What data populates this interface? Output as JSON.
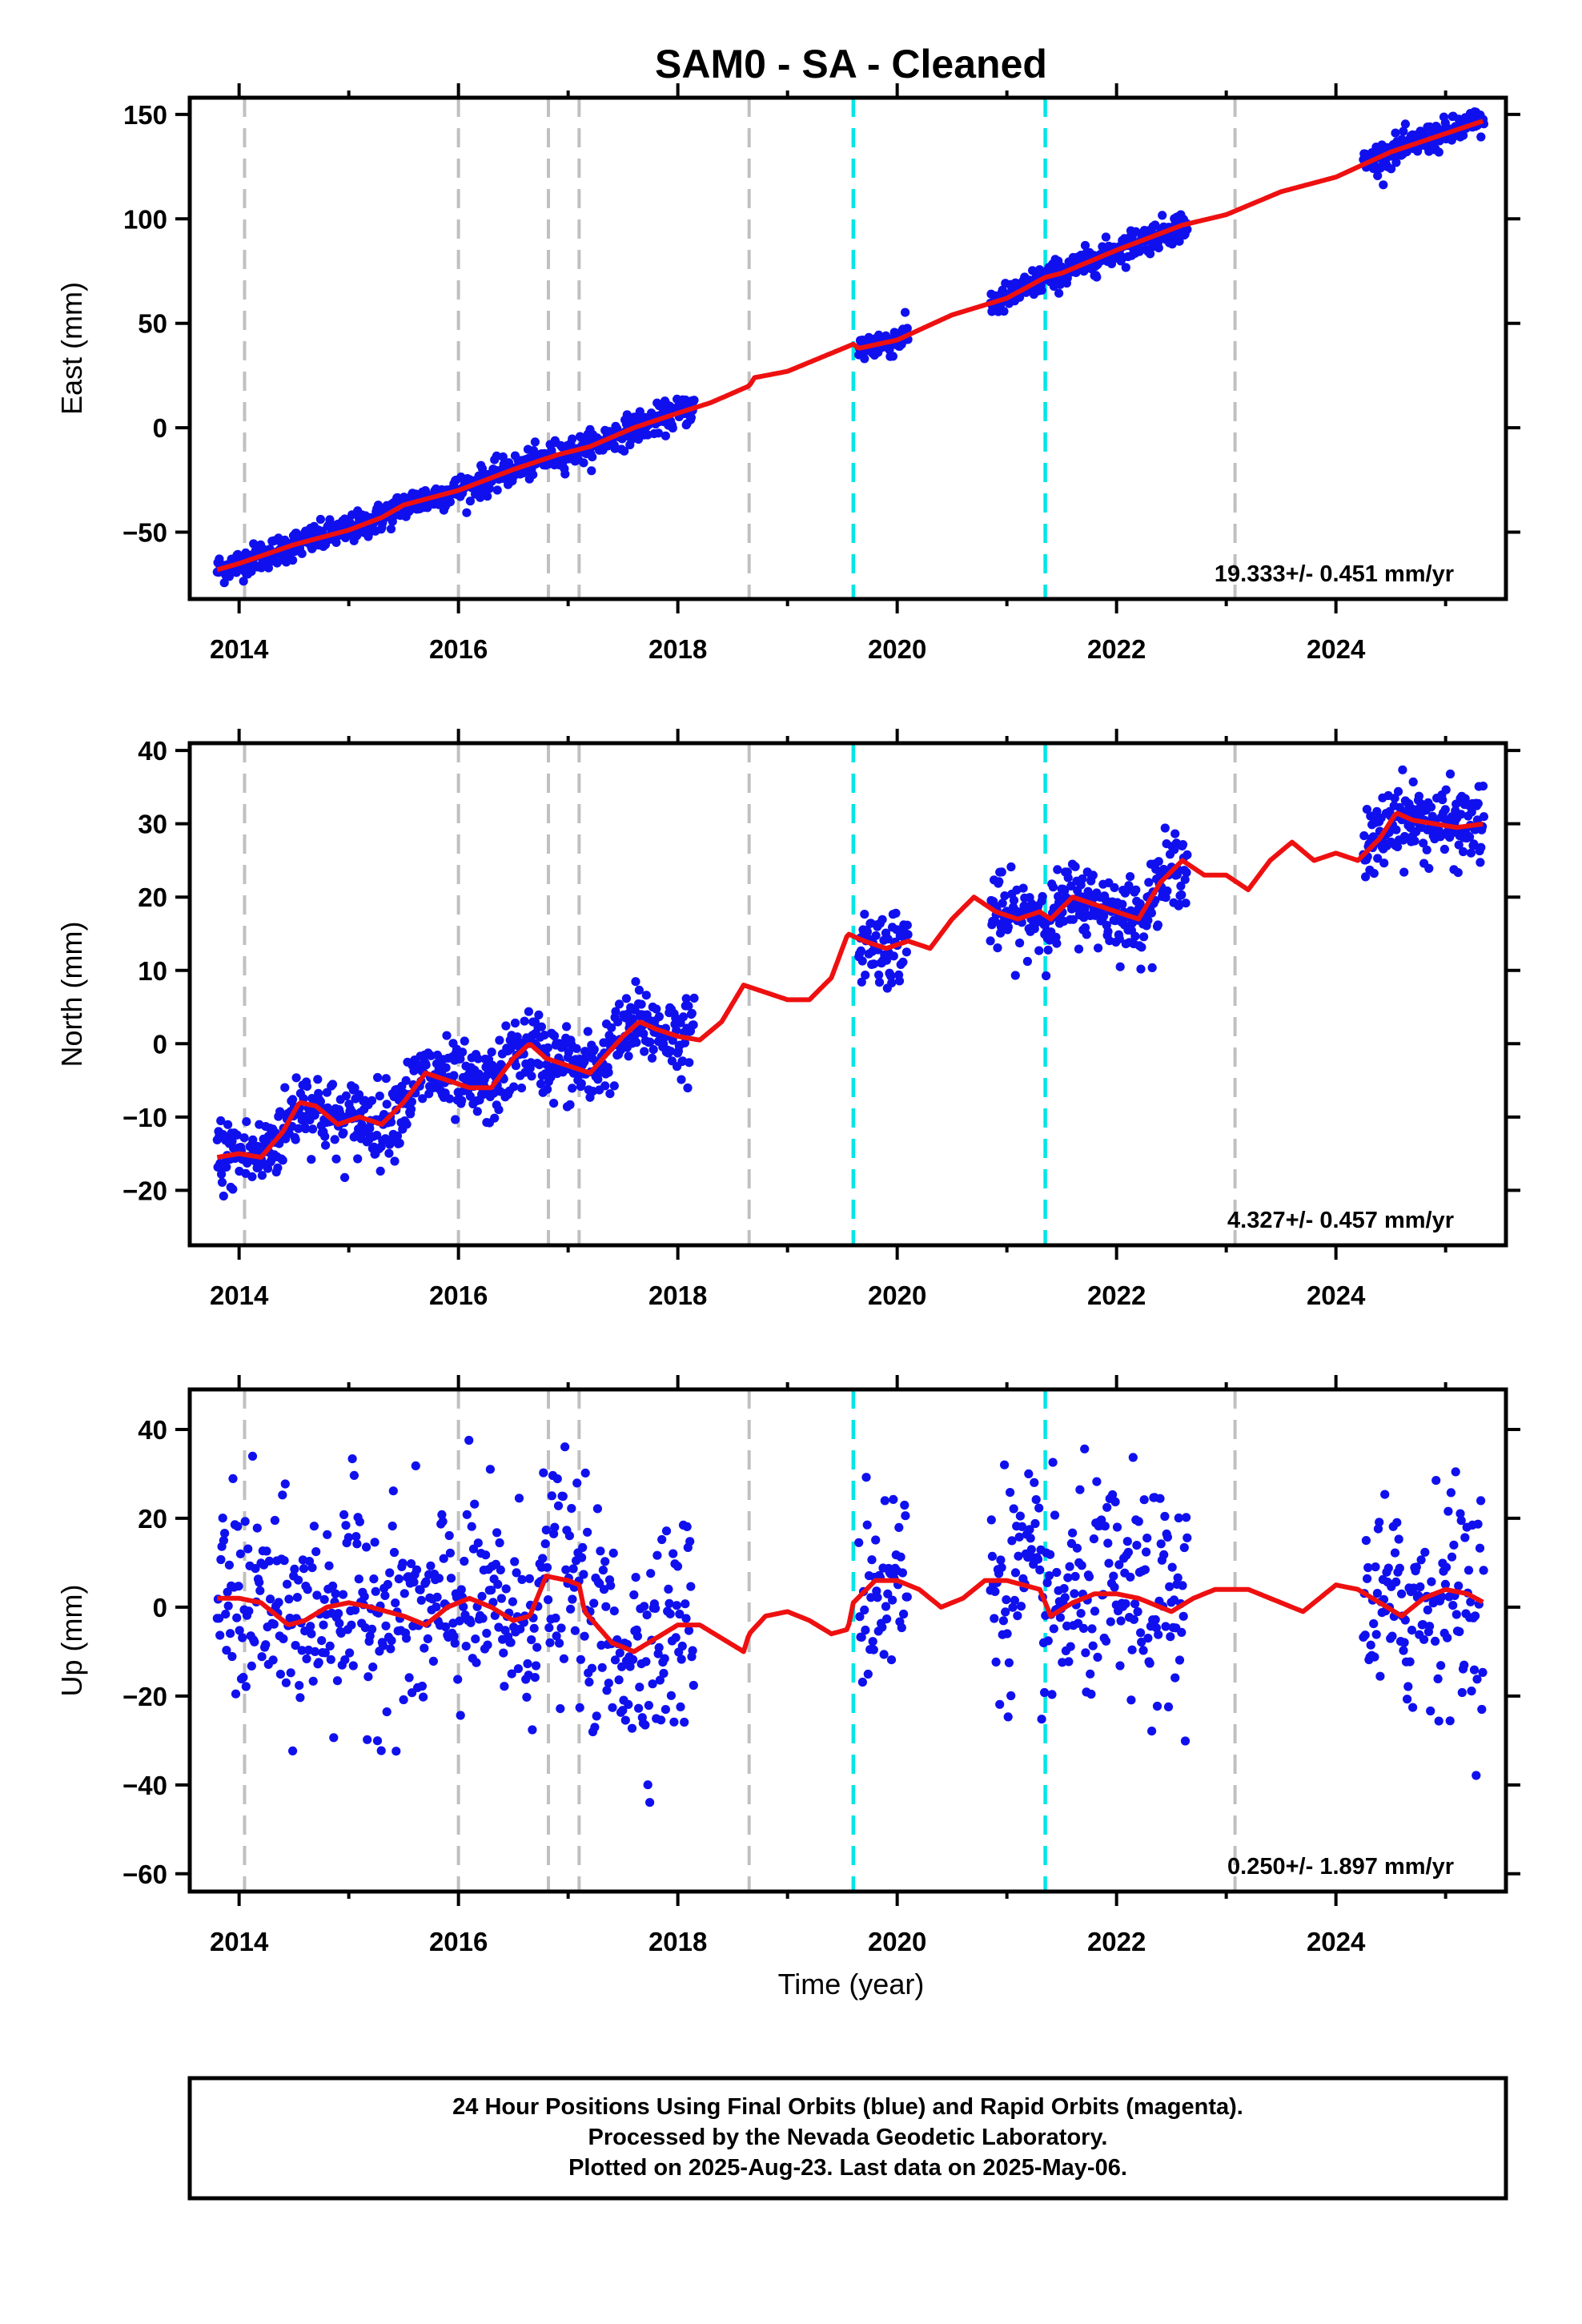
{
  "title": "SAM0  - SA - Cleaned",
  "xlabel": "Time (year)",
  "footer": [
    "24 Hour Positions Using Final Orbits (blue) and Rapid Orbits (magenta).",
    "Processed by the Nevada Geodetic Laboratory.",
    "Plotted on 2025-Aug-23. Last data on 2025-May-06."
  ],
  "colors": {
    "points": "#1010ee",
    "model": "#ee1010",
    "gray_lines": "#c0c0c0",
    "cyan_lines": "#00e5e5"
  },
  "chart_data": [
    {
      "type": "scatter",
      "ylabel": "East (mm)",
      "rate": "19.333+/- 0.451 mm/yr",
      "xlim": [
        2013.55,
        2025.55
      ],
      "ylim": [
        -82,
        158
      ],
      "xticks": [
        2014,
        2016,
        2018,
        2020,
        2022,
        2024
      ],
      "yticks": [
        -50,
        0,
        50,
        100,
        150
      ],
      "gray_lines": [
        2014.05,
        2016.0,
        2016.82,
        2017.1,
        2018.65,
        2023.08
      ],
      "cyan_lines": [
        2019.6,
        2021.35
      ],
      "data_segments": [
        [
          2013.8,
          2018.15
        ],
        [
          2019.65,
          2020.1
        ],
        [
          2020.85,
          2022.65
        ],
        [
          2024.25,
          2025.35
        ]
      ],
      "model": [
        [
          2013.8,
          -68
        ],
        [
          2014.0,
          -65
        ],
        [
          2014.5,
          -56
        ],
        [
          2015.0,
          -49
        ],
        [
          2015.3,
          -43
        ],
        [
          2015.5,
          -37
        ],
        [
          2016.0,
          -30
        ],
        [
          2016.5,
          -20
        ],
        [
          2016.9,
          -13
        ],
        [
          2017.2,
          -9
        ],
        [
          2017.6,
          0
        ],
        [
          2018.0,
          7
        ],
        [
          2018.3,
          12
        ],
        [
          2018.65,
          20
        ],
        [
          2018.7,
          24
        ],
        [
          2019.0,
          27
        ],
        [
          2019.6,
          40
        ],
        [
          2019.65,
          38
        ],
        [
          2020.0,
          42
        ],
        [
          2020.5,
          54
        ],
        [
          2021.0,
          62
        ],
        [
          2021.35,
          72
        ],
        [
          2021.5,
          74
        ],
        [
          2022.0,
          85
        ],
        [
          2022.6,
          97
        ],
        [
          2023.0,
          102
        ],
        [
          2023.5,
          113
        ],
        [
          2024.0,
          120
        ],
        [
          2024.5,
          132
        ],
        [
          2025.35,
          147
        ]
      ],
      "noise_sd": 3.5
    },
    {
      "type": "scatter",
      "ylabel": "North (mm)",
      "rate": "4.327+/- 0.457 mm/yr",
      "xlim": [
        2013.55,
        2025.55
      ],
      "ylim": [
        -27.5,
        41
      ]
    },
    {
      "type": "scatter",
      "ylabel": "Up (mm)",
      "rate": "0.250+/- 1.897 mm/yr",
      "xlim": [
        2013.55,
        2025.55
      ],
      "ylim": [
        -64,
        49
      ]
    }
  ],
  "north_model": [
    [
      2013.8,
      -15.5
    ],
    [
      2014.0,
      -15
    ],
    [
      2014.2,
      -15.5
    ],
    [
      2014.4,
      -12
    ],
    [
      2014.55,
      -8
    ],
    [
      2014.7,
      -8.5
    ],
    [
      2014.9,
      -11
    ],
    [
      2015.1,
      -10
    ],
    [
      2015.3,
      -11
    ],
    [
      2015.5,
      -8
    ],
    [
      2015.7,
      -4
    ],
    [
      2015.9,
      -5
    ],
    [
      2016.1,
      -6
    ],
    [
      2016.3,
      -6
    ],
    [
      2016.5,
      -2
    ],
    [
      2016.65,
      0
    ],
    [
      2016.8,
      -2
    ],
    [
      2017.0,
      -3
    ],
    [
      2017.2,
      -4
    ],
    [
      2017.5,
      1
    ],
    [
      2017.65,
      3
    ],
    [
      2017.8,
      2
    ],
    [
      2018.0,
      1
    ],
    [
      2018.2,
      0.5
    ],
    [
      2018.4,
      3
    ],
    [
      2018.6,
      8
    ],
    [
      2018.8,
      7
    ],
    [
      2019.0,
      6
    ],
    [
      2019.2,
      6
    ],
    [
      2019.4,
      9
    ],
    [
      2019.55,
      15
    ],
    [
      2019.7,
      14
    ],
    [
      2019.9,
      13
    ],
    [
      2020.1,
      14
    ],
    [
      2020.3,
      13
    ],
    [
      2020.5,
      17
    ],
    [
      2020.7,
      20
    ],
    [
      2020.9,
      18
    ],
    [
      2021.1,
      17
    ],
    [
      2021.3,
      18
    ],
    [
      2021.4,
      17
    ],
    [
      2021.6,
      20
    ],
    [
      2021.8,
      19
    ],
    [
      2022.0,
      18
    ],
    [
      2022.2,
      17
    ],
    [
      2022.4,
      22
    ],
    [
      2022.6,
      25
    ],
    [
      2022.8,
      23
    ],
    [
      2023.0,
      23
    ],
    [
      2023.2,
      21
    ],
    [
      2023.4,
      25
    ],
    [
      2023.6,
      27.5
    ],
    [
      2023.8,
      25
    ],
    [
      2024.0,
      26
    ],
    [
      2024.2,
      25
    ],
    [
      2024.4,
      28
    ],
    [
      2024.55,
      31.5
    ],
    [
      2024.7,
      30.5
    ],
    [
      2024.9,
      30
    ],
    [
      2025.1,
      29.5
    ],
    [
      2025.35,
      30
    ]
  ],
  "up_model": [
    [
      2013.8,
      2
    ],
    [
      2014.0,
      2
    ],
    [
      2014.2,
      1
    ],
    [
      2014.45,
      -4
    ],
    [
      2014.6,
      -3
    ],
    [
      2014.8,
      0
    ],
    [
      2015.0,
      1
    ],
    [
      2015.2,
      0
    ],
    [
      2015.5,
      -2
    ],
    [
      2015.7,
      -4
    ],
    [
      2015.9,
      0
    ],
    [
      2016.1,
      2
    ],
    [
      2016.3,
      0
    ],
    [
      2016.5,
      -3
    ],
    [
      2016.65,
      -2
    ],
    [
      2016.8,
      7
    ],
    [
      2017.0,
      6
    ],
    [
      2017.1,
      5
    ],
    [
      2017.15,
      -1
    ],
    [
      2017.4,
      -8
    ],
    [
      2017.6,
      -10
    ],
    [
      2017.8,
      -7
    ],
    [
      2018.0,
      -4
    ],
    [
      2018.2,
      -4
    ],
    [
      2018.4,
      -7
    ],
    [
      2018.6,
      -10
    ],
    [
      2018.65,
      -6
    ],
    [
      2018.8,
      -2
    ],
    [
      2019.0,
      -1
    ],
    [
      2019.2,
      -3
    ],
    [
      2019.4,
      -6
    ],
    [
      2019.55,
      -5
    ],
    [
      2019.6,
      1
    ],
    [
      2019.8,
      6
    ],
    [
      2020.0,
      6
    ],
    [
      2020.2,
      4
    ],
    [
      2020.4,
      0
    ],
    [
      2020.6,
      2
    ],
    [
      2020.8,
      6
    ],
    [
      2021.0,
      6
    ],
    [
      2021.3,
      4
    ],
    [
      2021.4,
      -2
    ],
    [
      2021.6,
      1
    ],
    [
      2021.8,
      3
    ],
    [
      2022.0,
      3
    ],
    [
      2022.2,
      2
    ],
    [
      2022.5,
      -1
    ],
    [
      2022.7,
      2
    ],
    [
      2022.9,
      4
    ],
    [
      2023.2,
      4
    ],
    [
      2023.5,
      1
    ],
    [
      2023.7,
      -1
    ],
    [
      2024.0,
      5
    ],
    [
      2024.2,
      4
    ],
    [
      2024.4,
      1
    ],
    [
      2024.6,
      -2
    ],
    [
      2024.8,
      2
    ],
    [
      2025.0,
      4
    ],
    [
      2025.2,
      3
    ],
    [
      2025.35,
      1
    ]
  ]
}
